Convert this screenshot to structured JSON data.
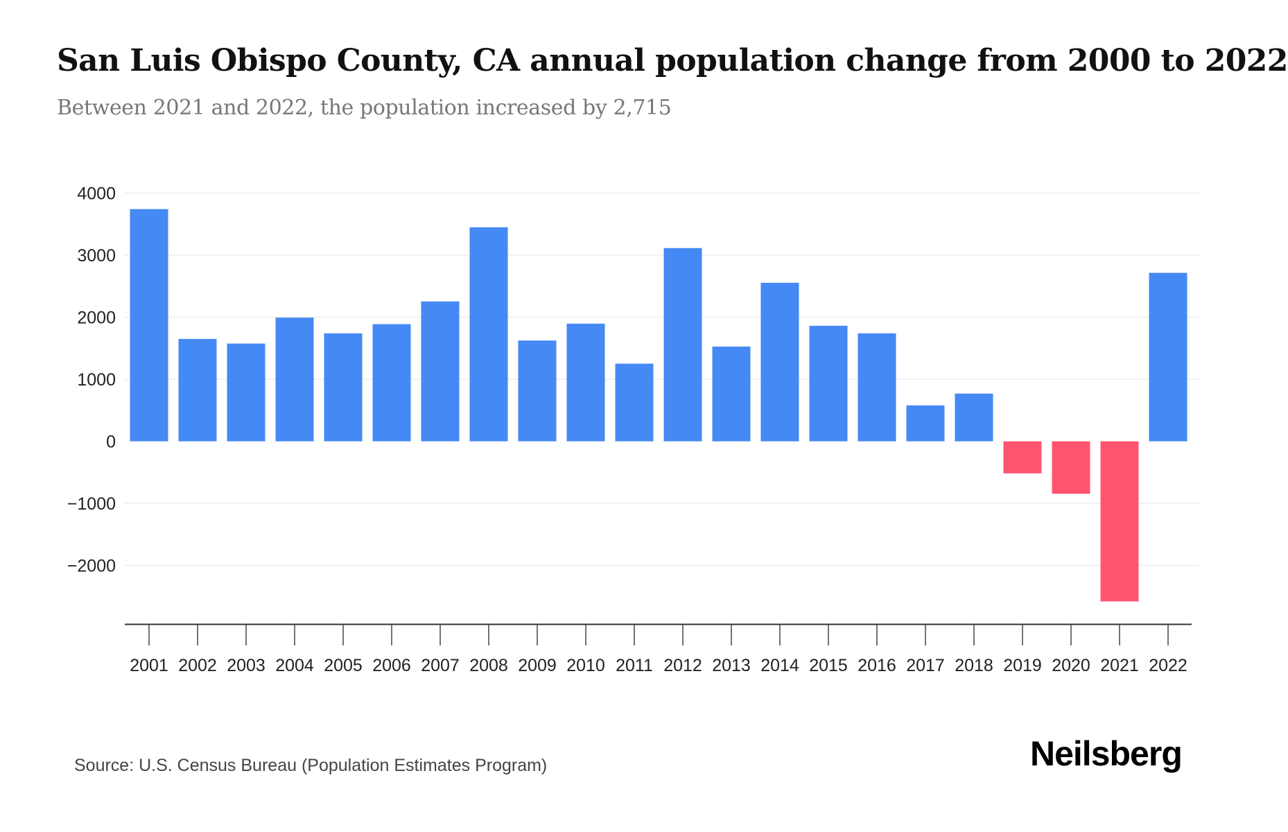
{
  "header": {
    "title": "San Luis Obispo County, CA annual population change from 2000 to 2022",
    "subtitle": "Between 2021 and 2022, the population increased by 2,715"
  },
  "footer": {
    "source": "Source: U.S. Census Bureau (Population Estimates Program)",
    "logo": "Neilsberg"
  },
  "chart_data": {
    "type": "bar",
    "title": "San Luis Obispo County, CA annual population change from 2000 to 2022",
    "subtitle": "Between 2021 and 2022, the population increased by 2,715",
    "xlabel": "",
    "ylabel": "",
    "categories": [
      "2001",
      "2002",
      "2003",
      "2004",
      "2005",
      "2006",
      "2007",
      "2008",
      "2009",
      "2010",
      "2011",
      "2012",
      "2013",
      "2014",
      "2015",
      "2016",
      "2017",
      "2018",
      "2019",
      "2020",
      "2021",
      "2022"
    ],
    "values": [
      3742,
      1650,
      1575,
      1993,
      1740,
      1888,
      2254,
      3449,
      1624,
      1896,
      1251,
      3114,
      1527,
      2555,
      1862,
      1740,
      579,
      769,
      -517,
      -845,
      -2580,
      2715
    ],
    "ylim": [
      -2800,
      4000
    ],
    "yticks": [
      4000,
      3000,
      2000,
      1000,
      0,
      -1000,
      -2000
    ],
    "ytick_labels": [
      "4000",
      "3000",
      "2000",
      "1000",
      "0",
      "−1000",
      "−2000"
    ],
    "grid": true,
    "legend": "none",
    "colors": {
      "positive": "#4589F4",
      "negative": "#FF5470"
    }
  }
}
